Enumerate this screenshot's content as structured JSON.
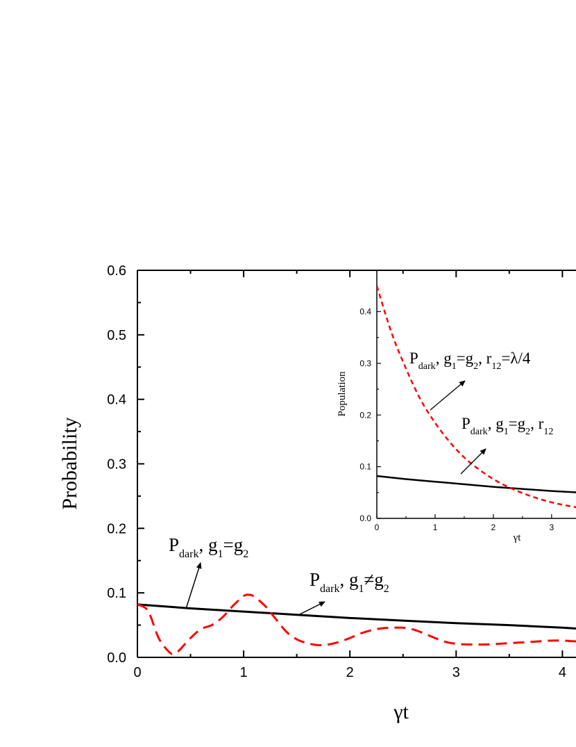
{
  "chart_data": [
    {
      "type": "line",
      "title": "",
      "xlabel": "γt",
      "ylabel": "Probability",
      "xlim": [
        0,
        4.2
      ],
      "ylim": [
        0,
        0.6
      ],
      "xticks": [
        "0",
        "1",
        "2",
        "3",
        "4"
      ],
      "yticks": [
        "0.0",
        "0.1",
        "0.2",
        "0.3",
        "0.4",
        "0.5",
        "0.6"
      ],
      "series": [
        {
          "style": "solid",
          "color": "#000000",
          "x": [
            0,
            0.5,
            1.0,
            1.5,
            2.0,
            2.5,
            3.0,
            3.5,
            4.0,
            4.2
          ],
          "y": [
            0.082,
            0.076,
            0.071,
            0.066,
            0.061,
            0.057,
            0.053,
            0.05,
            0.046,
            0.044
          ]
        },
        {
          "style": "dashed",
          "color": "#ff0000",
          "x": [
            0,
            0.1,
            0.2,
            0.3,
            0.35,
            0.4,
            0.5,
            0.6,
            0.7,
            0.8,
            0.9,
            1.0,
            1.05,
            1.1,
            1.2,
            1.3,
            1.4,
            1.5,
            1.6,
            1.7,
            1.8,
            1.9,
            2.0,
            2.1,
            2.2,
            2.3,
            2.4,
            2.5,
            2.6,
            2.7,
            2.8,
            2.9,
            3.0,
            3.1,
            3.2,
            3.3,
            3.4,
            3.5,
            3.6,
            3.7,
            3.8,
            3.9,
            4.0,
            4.1,
            4.2
          ],
          "y": [
            0.082,
            0.072,
            0.03,
            0.008,
            0.006,
            0.012,
            0.03,
            0.044,
            0.05,
            0.062,
            0.08,
            0.095,
            0.097,
            0.094,
            0.08,
            0.06,
            0.04,
            0.028,
            0.022,
            0.019,
            0.02,
            0.024,
            0.03,
            0.037,
            0.042,
            0.045,
            0.046,
            0.046,
            0.043,
            0.037,
            0.03,
            0.024,
            0.021,
            0.02,
            0.02,
            0.02,
            0.021,
            0.022,
            0.023,
            0.024,
            0.025,
            0.026,
            0.026,
            0.025,
            0.024
          ]
        }
      ],
      "annotations": [
        {
          "base": "P",
          "sub": "dark",
          "rest": ", g",
          "sub2": "1",
          "rest2": "=g",
          "sub3": "2"
        },
        {
          "base": "P",
          "sub": "dark",
          "rest": ", g",
          "sub2": "1",
          "rest2": "≠g",
          "sub3": "2"
        }
      ]
    },
    {
      "type": "line",
      "title": "",
      "xlabel": "γt",
      "ylabel": "Population",
      "xlim": [
        0,
        3.55
      ],
      "ylim": [
        0,
        0.48
      ],
      "xticks": [
        "0",
        "1",
        "2",
        "3"
      ],
      "yticks": [
        "0.0",
        "0.1",
        "0.2",
        "0.3",
        "0.4"
      ],
      "series": [
        {
          "style": "solid",
          "color": "#000000",
          "x": [
            0,
            0.5,
            1.0,
            1.5,
            2.0,
            2.5,
            3.0,
            3.5,
            3.55
          ],
          "y": [
            0.082,
            0.076,
            0.071,
            0.066,
            0.061,
            0.057,
            0.053,
            0.05,
            0.049
          ]
        },
        {
          "style": "dashed",
          "color": "#ff0000",
          "x": [
            0,
            0.25,
            0.5,
            0.75,
            1.0,
            1.25,
            1.5,
            1.75,
            2.0,
            2.25,
            2.5,
            2.75,
            3.0,
            3.25,
            3.5,
            3.55
          ],
          "y": [
            0.45,
            0.36,
            0.29,
            0.23,
            0.185,
            0.148,
            0.118,
            0.095,
            0.076,
            0.061,
            0.049,
            0.039,
            0.031,
            0.025,
            0.02,
            0.019
          ]
        }
      ],
      "annotations": [
        {
          "base": "P",
          "sub": "dark",
          "rest": ", g",
          "sub2": "1",
          "rest2": "=g",
          "sub3": "2",
          "rest3": ", r",
          "sub4": "12",
          "rest4": "=λ/4"
        },
        {
          "base": "P",
          "sub": "dark",
          "rest": ", g",
          "sub2": "1",
          "rest2": "=g",
          "sub3": "2",
          "rest3": ", r",
          "sub4": "12"
        }
      ]
    }
  ]
}
